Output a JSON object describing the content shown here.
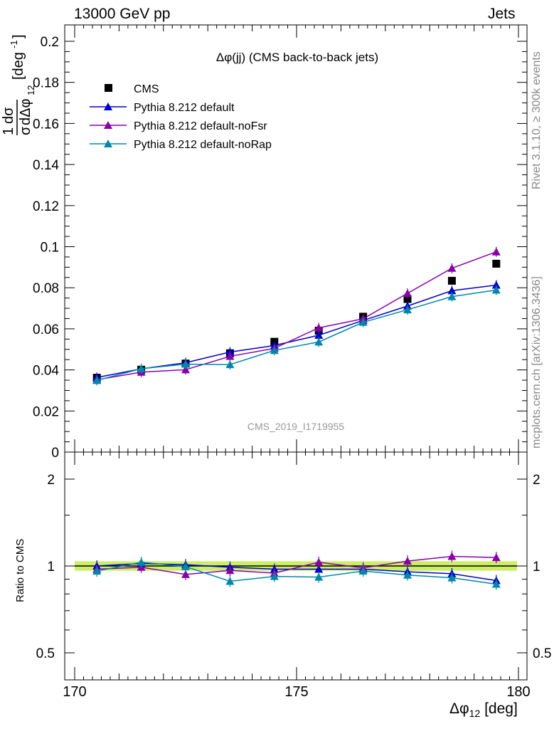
{
  "header": {
    "left": "13000 GeV pp",
    "right": "Jets"
  },
  "side_labels": {
    "rivet": "Rivet 3.1.10, ≥ 300k events",
    "mcplots": "mcplots.cern.ch [arXiv:1306.3436]"
  },
  "chart_data": [
    {
      "type": "line",
      "title": "Δφ(jj) (CMS back-to-back jets)",
      "watermark": "CMS_2019_I1719955",
      "ylabel": "1/σ dσ/dΔφ_12 [deg^-1]",
      "xlabel": "Δφ_12 [deg]",
      "xlim": [
        170,
        180
      ],
      "ylim": [
        0,
        0.21
      ],
      "yticks": [
        "0",
        "0.02",
        "0.04",
        "0.06",
        "0.08",
        "0.1",
        "0.12",
        "0.14",
        "0.16",
        "0.18",
        "0.2"
      ],
      "x": [
        170.5,
        171.5,
        172.5,
        173.5,
        174.5,
        175.5,
        176.5,
        177.5,
        178.5,
        179.5
      ],
      "series": [
        {
          "name": "CMS",
          "color": "#000000",
          "marker": "square",
          "values": [
            0.0362,
            0.0401,
            0.0431,
            0.0481,
            0.0537,
            0.0591,
            0.0659,
            0.0745,
            0.0834,
            0.0917
          ]
        },
        {
          "name": "Pythia 8.212 default",
          "color": "#0000cc",
          "marker": "triangle",
          "values": [
            0.0363,
            0.0405,
            0.0435,
            0.0487,
            0.0519,
            0.0569,
            0.0641,
            0.0711,
            0.0786,
            0.0813
          ]
        },
        {
          "name": "Pythia 8.212 default-noFsr",
          "color": "#8800aa",
          "marker": "triangle",
          "values": [
            0.0352,
            0.0389,
            0.0401,
            0.0466,
            0.0505,
            0.0605,
            0.0649,
            0.0773,
            0.0895,
            0.0975
          ]
        },
        {
          "name": "Pythia 8.212 default-noRap",
          "color": "#0088aa",
          "marker": "triangle",
          "values": [
            0.0349,
            0.0406,
            0.0428,
            0.0426,
            0.0495,
            0.0536,
            0.0632,
            0.0693,
            0.0757,
            0.0789
          ]
        }
      ]
    },
    {
      "type": "line",
      "ylabel": "Ratio to CMS",
      "xlim": [
        170,
        180
      ],
      "ylim": [
        0.4,
        2.3
      ],
      "yscale": "log",
      "yticks": [
        "0.5",
        "1",
        "2"
      ],
      "xticks": [
        "170",
        "175",
        "180"
      ],
      "x": [
        170.5,
        171.5,
        172.5,
        173.5,
        174.5,
        175.5,
        176.5,
        177.5,
        178.5,
        179.5
      ],
      "band": {
        "low": 0.985,
        "high": 1.015,
        "color": "#ccee66"
      },
      "series": [
        {
          "name": "Pythia 8.212 default",
          "color": "#0000cc",
          "values": [
            1.0,
            1.02,
            1.01,
            0.99,
            0.975,
            0.975,
            0.975,
            0.955,
            0.94,
            0.89
          ]
        },
        {
          "name": "Pythia 8.212 default-noFsr",
          "color": "#8800aa",
          "values": [
            0.975,
            0.99,
            0.935,
            0.965,
            0.945,
            1.03,
            0.985,
            1.04,
            1.08,
            1.07
          ]
        },
        {
          "name": "Pythia 8.212 default-noRap",
          "color": "#0088aa",
          "values": [
            0.96,
            1.03,
            0.995,
            0.885,
            0.92,
            0.915,
            0.96,
            0.93,
            0.91,
            0.865
          ]
        }
      ]
    }
  ]
}
